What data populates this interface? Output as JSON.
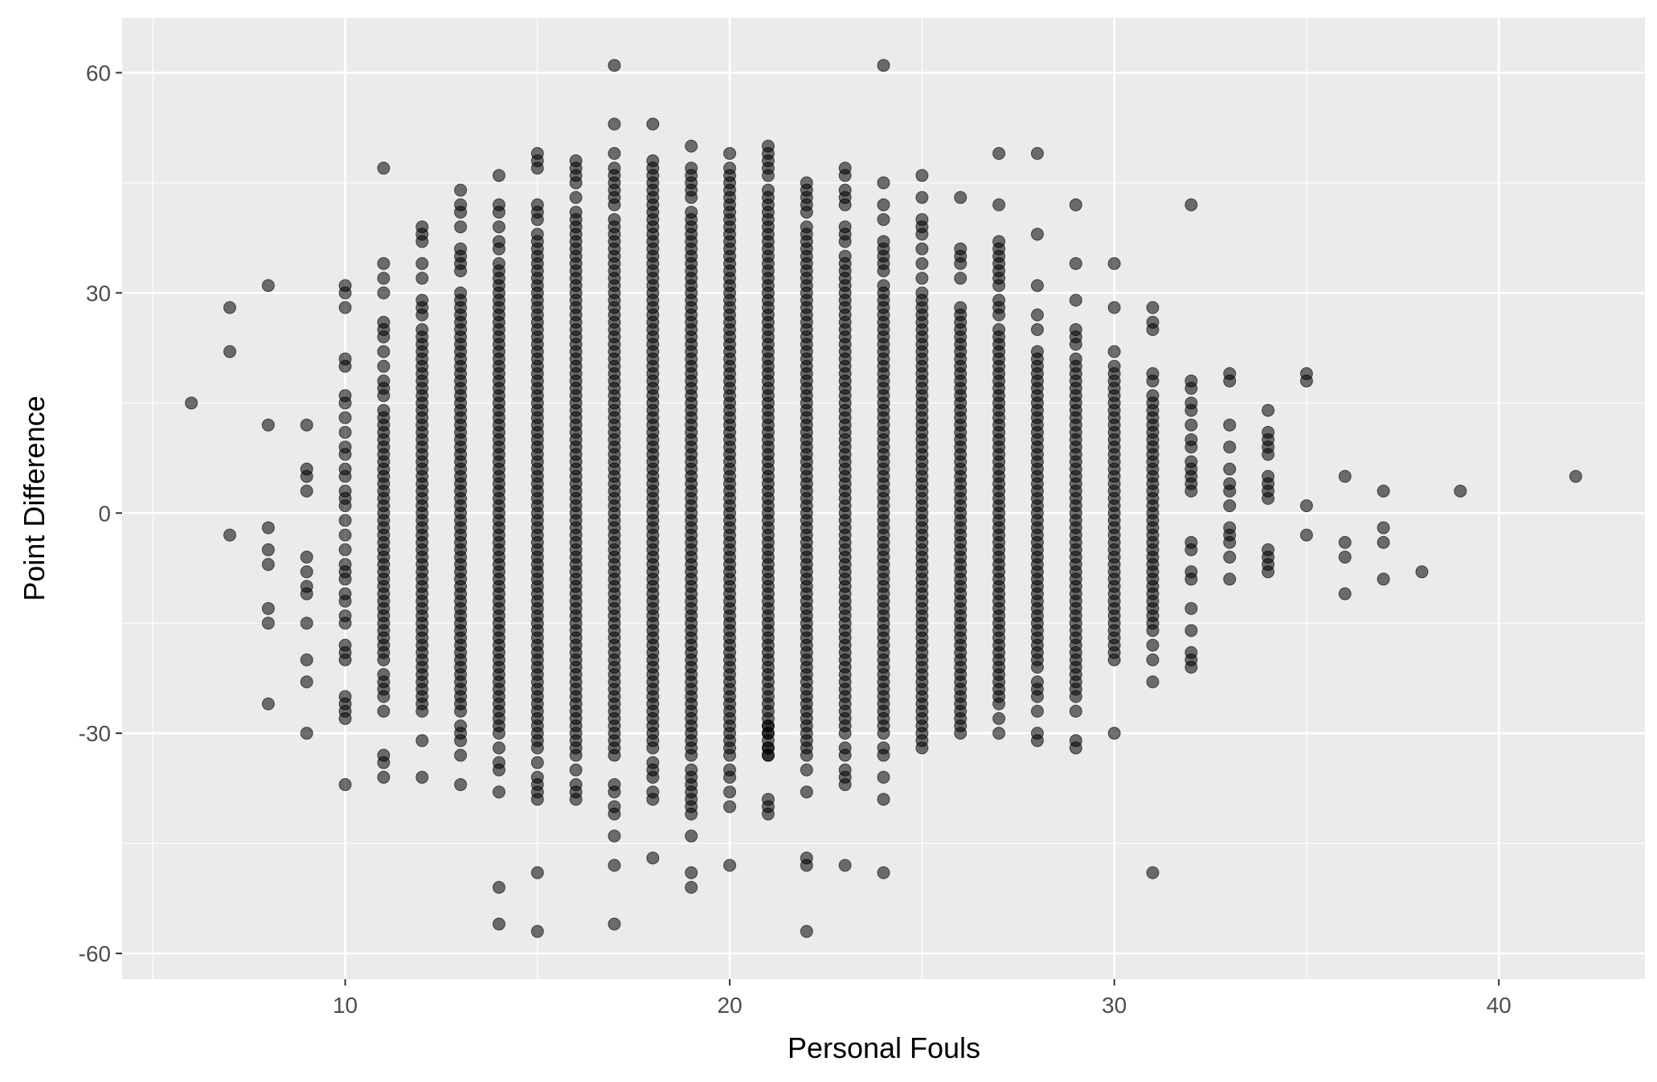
{
  "chart_data": {
    "type": "scatter",
    "title": "",
    "xlabel": "Personal Fouls",
    "ylabel": "Point Difference",
    "xlim": [
      4.2,
      43.8
    ],
    "ylim": [
      -63.5,
      67.5
    ],
    "x_major_ticks": [
      10,
      20,
      30,
      40
    ],
    "x_minor_ticks": [
      5,
      15,
      25,
      35
    ],
    "y_major_ticks": [
      -60,
      -30,
      0,
      30,
      60
    ],
    "y_minor_ticks": [
      -45,
      -15,
      15,
      45
    ],
    "x_tick_labels": [
      "10",
      "20",
      "30",
      "40"
    ],
    "y_tick_labels": [
      "-60",
      "-30",
      "0",
      "30",
      "60"
    ],
    "grid": true,
    "legend": "none",
    "colors": {
      "panel": "#EBEBEB",
      "grid": "#FFFFFF",
      "point": "#000000",
      "tick_label": "#4D4D4D",
      "axis_title": "#000000"
    },
    "point_alpha": 0.55,
    "note_on_density": "Columns at each integer foul count from 11 to 33 are densely filled between the listed low and high ends.",
    "columns": [
      {
        "x": 6,
        "points": [
          15
        ]
      },
      {
        "x": 7,
        "points": [
          28,
          22,
          -3
        ]
      },
      {
        "x": 8,
        "points": [
          31,
          12,
          -2,
          -5,
          -7,
          -13,
          -15,
          -26
        ]
      },
      {
        "x": 9,
        "points": [
          12,
          6,
          5,
          3,
          -6,
          -8,
          -10,
          -11,
          -15,
          -20,
          -23,
          -30
        ]
      },
      {
        "x": 10,
        "points": [
          31,
          30,
          28,
          21,
          20,
          16,
          15,
          13,
          11,
          9,
          8,
          6,
          5,
          3,
          2,
          1,
          -1,
          -3,
          -5,
          -7,
          -8,
          -9,
          -11,
          -12,
          -14,
          -15,
          -18,
          -19,
          -20,
          -25,
          -26,
          -27,
          -28,
          -37
        ]
      },
      {
        "x": 11,
        "points": [
          47,
          34,
          32,
          30,
          26,
          25,
          24,
          22,
          20,
          18,
          17,
          16,
          14,
          13,
          12,
          11,
          10,
          9,
          8,
          7,
          6,
          5,
          4,
          3,
          2,
          1,
          0,
          -1,
          -2,
          -3,
          -4,
          -5,
          -6,
          -7,
          -8,
          -9,
          -10,
          -11,
          -12,
          -13,
          -14,
          -15,
          -16,
          -17,
          -18,
          -19,
          -20,
          -22,
          -23,
          -24,
          -25,
          -27,
          -33,
          -34,
          -36
        ]
      },
      {
        "x": 12,
        "dense": [
          -27,
          24
        ],
        "points": [
          39,
          38,
          37,
          34,
          32,
          29,
          28,
          27,
          25,
          -31,
          -36
        ]
      },
      {
        "x": 13,
        "dense": [
          -27,
          30
        ],
        "points": [
          44,
          42,
          41,
          39,
          36,
          35,
          34,
          33,
          -29,
          -30,
          -31,
          -33,
          -37
        ]
      },
      {
        "x": 14,
        "dense": [
          -30,
          34
        ],
        "points": [
          46,
          42,
          41,
          39,
          37,
          36,
          -32,
          -34,
          -35,
          -38,
          -51,
          -56
        ]
      },
      {
        "x": 15,
        "dense": [
          -32,
          38
        ],
        "points": [
          49,
          48,
          47,
          42,
          41,
          40,
          -34,
          -36,
          -37,
          -38,
          -39,
          -49,
          -57
        ]
      },
      {
        "x": 16,
        "dense": [
          -33,
          40
        ],
        "points": [
          48,
          47,
          46,
          45,
          43,
          41,
          -35,
          -37,
          -38,
          -39
        ]
      },
      {
        "x": 17,
        "dense": [
          -33,
          40
        ],
        "points": [
          61,
          53,
          49,
          47,
          46,
          45,
          44,
          43,
          42,
          -37,
          -38,
          -40,
          -41,
          -44,
          -48,
          -56
        ]
      },
      {
        "x": 18,
        "dense": [
          -32,
          42
        ],
        "points": [
          53,
          48,
          47,
          46,
          45,
          44,
          43,
          -34,
          -35,
          -36,
          -38,
          -39,
          -47
        ]
      },
      {
        "x": 19,
        "dense": [
          -33,
          41
        ],
        "points": [
          50,
          47,
          46,
          45,
          44,
          43,
          -35,
          -36,
          -37,
          -38,
          -39,
          -40,
          -41,
          -44,
          -49,
          -51
        ]
      },
      {
        "x": 20,
        "dense": [
          -33,
          43
        ],
        "points": [
          49,
          47,
          46,
          45,
          44,
          -35,
          -36,
          -38,
          -40,
          -48
        ]
      },
      {
        "x": 21,
        "dense": [
          -33,
          42
        ],
        "points": [
          50,
          49,
          48,
          47,
          46,
          44,
          43,
          -29,
          -30,
          -32,
          -33,
          -39,
          -40,
          -41
        ]
      },
      {
        "x": 22,
        "dense": [
          -33,
          39
        ],
        "points": [
          45,
          44,
          43,
          42,
          41,
          -35,
          -38,
          -47,
          -48,
          -57
        ]
      },
      {
        "x": 23,
        "dense": [
          -30,
          35
        ],
        "points": [
          47,
          46,
          44,
          43,
          42,
          39,
          38,
          37,
          -32,
          -33,
          -35,
          -36,
          -37,
          -48
        ]
      },
      {
        "x": 24,
        "dense": [
          -30,
          31
        ],
        "points": [
          61,
          45,
          42,
          40,
          37,
          36,
          35,
          34,
          33,
          -32,
          -33,
          -36,
          -39,
          -49
        ]
      },
      {
        "x": 25,
        "dense": [
          -28,
          30
        ],
        "points": [
          46,
          43,
          40,
          39,
          38,
          36,
          34,
          32,
          -29,
          -30,
          -31,
          -32
        ]
      },
      {
        "x": 26,
        "dense": [
          -27,
          28
        ],
        "points": [
          43,
          36,
          35,
          34,
          32,
          -28,
          -29,
          -30
        ]
      },
      {
        "x": 27,
        "dense": [
          -24,
          25
        ],
        "points": [
          49,
          42,
          37,
          36,
          35,
          34,
          33,
          32,
          31,
          29,
          28,
          27,
          -25,
          -26,
          -28,
          -30
        ]
      },
      {
        "x": 28,
        "dense": [
          -21,
          22
        ],
        "points": [
          49,
          38,
          31,
          27,
          25,
          -23,
          -24,
          -25,
          -27,
          -30,
          -31
        ]
      },
      {
        "x": 29,
        "dense": [
          -22,
          21
        ],
        "points": [
          42,
          34,
          29,
          25,
          24,
          23,
          -23,
          -24,
          -25,
          -27,
          -31,
          -32
        ]
      },
      {
        "x": 30,
        "dense": [
          -20,
          19
        ],
        "points": [
          34,
          28,
          22,
          20,
          -30
        ]
      },
      {
        "x": 31,
        "dense": [
          -16,
          16
        ],
        "points": [
          28,
          26,
          25,
          19,
          18,
          -18,
          -20,
          -23,
          -49
        ]
      },
      {
        "x": 32,
        "points": [
          42,
          18,
          17,
          15,
          14,
          12,
          10,
          9,
          7,
          6,
          5,
          4,
          3,
          -4,
          -5,
          -8,
          -9,
          -13,
          -16,
          -19,
          -20,
          -21
        ]
      },
      {
        "x": 33,
        "points": [
          19,
          18,
          12,
          9,
          6,
          4,
          3,
          1,
          -2,
          -3,
          -4,
          -6,
          -9
        ]
      },
      {
        "x": 34,
        "points": [
          14,
          11,
          10,
          9,
          8,
          5,
          4,
          3,
          2,
          -5,
          -6,
          -7,
          -8
        ]
      },
      {
        "x": 35,
        "points": [
          19,
          18,
          1,
          -3
        ]
      },
      {
        "x": 36,
        "points": [
          5,
          -4,
          -6,
          -11
        ]
      },
      {
        "x": 37,
        "points": [
          3,
          -2,
          -4,
          -9
        ]
      },
      {
        "x": 38,
        "points": [
          -8
        ]
      },
      {
        "x": 39,
        "points": [
          3
        ]
      },
      {
        "x": 42,
        "points": [
          5
        ]
      }
    ]
  }
}
